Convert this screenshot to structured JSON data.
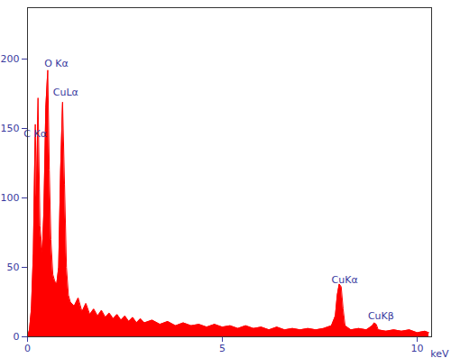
{
  "chart_data": {
    "type": "area",
    "x_label": "keV",
    "x": [
      0.0,
      0.05,
      0.1,
      0.15,
      0.2,
      0.23,
      0.27,
      0.32,
      0.38,
      0.42,
      0.47,
      0.52,
      0.56,
      0.6,
      0.65,
      0.7,
      0.75,
      0.8,
      0.85,
      0.9,
      0.95,
      1.0,
      1.05,
      1.1,
      1.2,
      1.3,
      1.4,
      1.5,
      1.6,
      1.7,
      1.8,
      1.9,
      2.0,
      2.1,
      2.2,
      2.3,
      2.4,
      2.5,
      2.6,
      2.7,
      2.8,
      2.9,
      3.0,
      3.2,
      3.4,
      3.6,
      3.8,
      4.0,
      4.2,
      4.4,
      4.6,
      4.8,
      5.0,
      5.2,
      5.4,
      5.6,
      5.8,
      6.0,
      6.2,
      6.4,
      6.6,
      6.8,
      7.0,
      7.2,
      7.4,
      7.6,
      7.8,
      7.9,
      7.95,
      8.0,
      8.05,
      8.1,
      8.15,
      8.3,
      8.5,
      8.7,
      8.85,
      8.9,
      8.95,
      9.0,
      9.2,
      9.4,
      9.6,
      9.8,
      10.0,
      10.2,
      10.3
    ],
    "values": [
      0,
      5,
      20,
      60,
      153,
      100,
      172,
      80,
      60,
      90,
      165,
      192,
      120,
      70,
      45,
      40,
      38,
      50,
      120,
      169,
      110,
      50,
      30,
      25,
      22,
      28,
      18,
      24,
      16,
      20,
      15,
      19,
      14,
      17,
      13,
      16,
      12,
      15,
      11,
      14,
      10,
      13,
      10,
      12,
      9,
      11,
      8,
      10,
      8,
      9,
      7,
      9,
      7,
      8,
      6,
      8,
      6,
      7,
      5,
      7,
      5,
      6,
      5,
      6,
      5,
      6,
      8,
      15,
      30,
      38,
      36,
      20,
      8,
      5,
      6,
      5,
      8,
      10,
      9,
      5,
      4,
      5,
      4,
      5,
      3,
      4,
      3
    ],
    "color": "#ff0000",
    "xlim": [
      0,
      10.37
    ],
    "xticks": [
      0,
      5,
      10
    ],
    "ylim": [
      0,
      237
    ],
    "yticks": [
      0,
      50,
      100,
      150,
      200
    ],
    "annotations": [
      {
        "text": "C Kα",
        "x": 0.2,
        "y": 146
      },
      {
        "text": "O Kα",
        "x": 0.74,
        "y": 197
      },
      {
        "text": "CuLα",
        "x": 0.98,
        "y": 176
      },
      {
        "text": "CuKα",
        "x": 8.14,
        "y": 41
      },
      {
        "text": "CuKβ",
        "x": 9.07,
        "y": 15
      }
    ]
  }
}
